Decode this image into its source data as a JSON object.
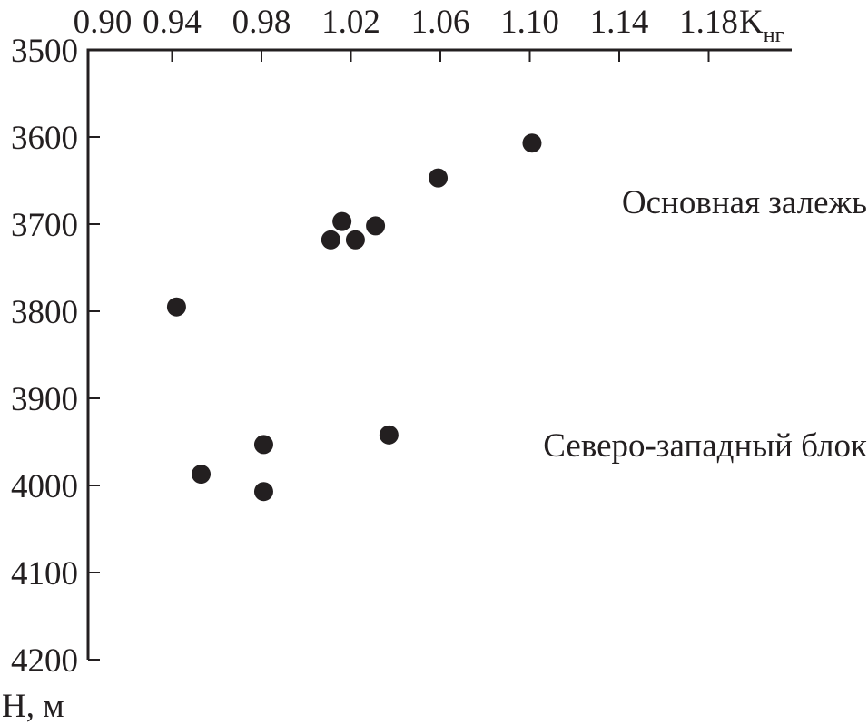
{
  "chart_data": {
    "type": "scatter",
    "title": "",
    "xlabel": "K",
    "xlabel_subscript": "нг",
    "ylabel": "H, м",
    "xlim": [
      0.9,
      1.22
    ],
    "ylim": [
      3500,
      4200
    ],
    "y_inverted": true,
    "x_axis_position": "top",
    "grid": false,
    "x_ticks": [
      "0.90",
      "0.94",
      "0.98",
      "1.02",
      "1.06",
      "1.10",
      "1.14",
      "1.18"
    ],
    "y_ticks": [
      "3500",
      "3600",
      "3700",
      "3800",
      "3900",
      "4000",
      "4100",
      "4200"
    ],
    "marker_color": "#231f20",
    "points": [
      {
        "x": 1.101,
        "y": 3607
      },
      {
        "x": 1.059,
        "y": 3647
      },
      {
        "x": 1.016,
        "y": 3697
      },
      {
        "x": 1.031,
        "y": 3702
      },
      {
        "x": 1.011,
        "y": 3718
      },
      {
        "x": 1.022,
        "y": 3718
      },
      {
        "x": 0.942,
        "y": 3795
      },
      {
        "x": 1.037,
        "y": 3942
      },
      {
        "x": 0.981,
        "y": 3953
      },
      {
        "x": 0.953,
        "y": 3987
      },
      {
        "x": 0.981,
        "y": 4007
      }
    ],
    "annotations": [
      {
        "text": "Основная залежь",
        "x": 1.18,
        "y": 3690
      },
      {
        "text": "Северо-западный блок",
        "x": 1.13,
        "y": 3960
      }
    ]
  }
}
